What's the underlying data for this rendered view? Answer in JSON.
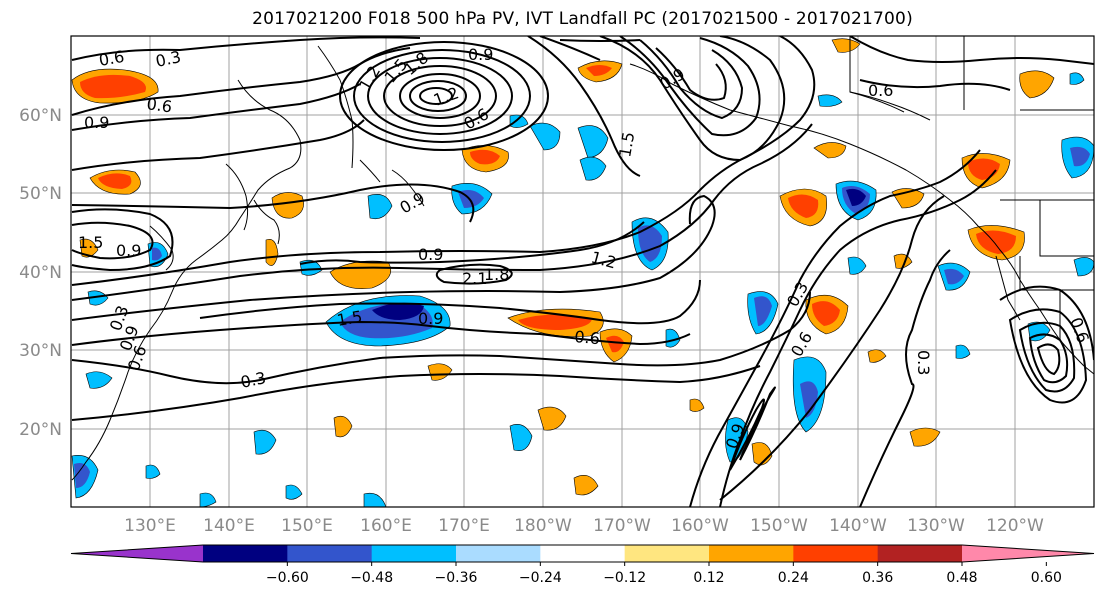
{
  "title": "2017021200 F018 500 hPa PV, IVT Landfall PC (2017021500 - 2017021700)",
  "lat_labels": [
    "60°N",
    "50°N",
    "40°N",
    "30°N",
    "20°N"
  ],
  "lon_labels": [
    "130°E",
    "140°E",
    "150°E",
    "160°E",
    "170°E",
    "180°W",
    "170°W",
    "160°W",
    "150°W",
    "140°W",
    "130°W",
    "120°W"
  ],
  "contour_labels": [
    "0.6",
    "0.3",
    "0.6",
    "0.9",
    "1.5",
    "0.9",
    "0.3",
    "0.9",
    "0.6",
    "1.2",
    "1.8",
    "1.5",
    "1.2",
    "0.9",
    "0.9",
    "0.6",
    "1.5",
    "0.9",
    "1.2",
    "2.1",
    "1.8",
    "0.9",
    "1.5",
    "0.9",
    "0.6",
    "0.3",
    "0.6",
    "0.3",
    "0.6",
    "0.9",
    "0.3",
    "0.6"
  ],
  "colorbar": {
    "ticks": [
      "−0.60",
      "−0.48",
      "−0.36",
      "−0.24",
      "−0.12",
      "0.12",
      "0.24",
      "0.36",
      "0.48",
      "0.60"
    ],
    "colors": [
      "#9933cc",
      "#000080",
      "#3355cc",
      "#00bfff",
      "#aadcff",
      "#ffffff",
      "#ffe680",
      "#ffa500",
      "#ff4000",
      "#b22222",
      "#ff88aa"
    ]
  }
}
